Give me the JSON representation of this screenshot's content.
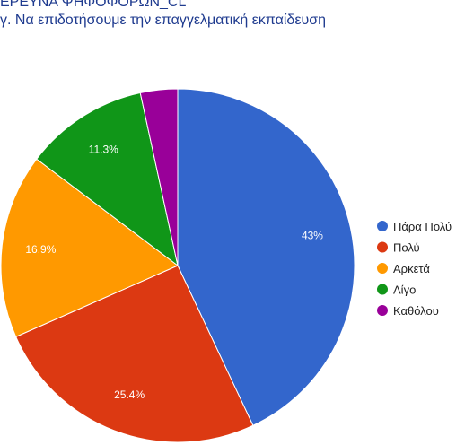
{
  "chart_data": {
    "type": "pie",
    "title": "ΕΡΕΥΝΑ ΨΗΦΟΦΟΡΩΝ_CL",
    "subtitle": "γ. Να επιδοτήσουμε την επαγγελματική εκπαίδευση",
    "legend_position": "right",
    "categories": [
      "Πάρα Πολύ",
      "Πολύ",
      "Αρκετά",
      "Λίγο",
      "Καθόλου"
    ],
    "values": [
      43.0,
      25.4,
      16.9,
      11.3,
      3.4
    ],
    "data_labels": [
      "43%",
      "25.4%",
      "16.9%",
      "11.3%",
      ""
    ],
    "colors": [
      "#3366cc",
      "#dc3912",
      "#ff9900",
      "#109618",
      "#990099"
    ]
  }
}
